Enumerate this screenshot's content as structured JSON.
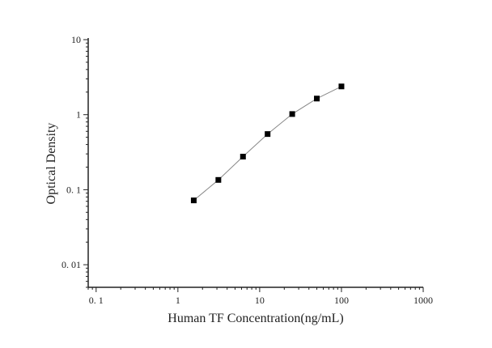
{
  "chart_data": {
    "type": "line",
    "title": "",
    "xlabel": "Human TF Concentration(ng/mL)",
    "ylabel": "Optical Density",
    "x_scale": "log",
    "y_scale": "log",
    "xlim": [
      0.08,
      1000
    ],
    "ylim": [
      0.005,
      10
    ],
    "x_ticks": [
      0.1,
      1,
      10,
      100,
      1000
    ],
    "x_tick_labels": [
      "0. 1",
      "1",
      "10",
      "100",
      "1000"
    ],
    "y_ticks": [
      0.01,
      0.1,
      1,
      10
    ],
    "y_tick_labels": [
      "0. 01",
      "0. 1",
      "1",
      "10"
    ],
    "grid": false,
    "series": [
      {
        "marker": "square",
        "color": "#000000",
        "line_color": "#888888",
        "x": [
          1.5625,
          3.125,
          6.25,
          12.5,
          25,
          50,
          100
        ],
        "y": [
          0.072,
          0.135,
          0.276,
          0.552,
          1.02,
          1.64,
          2.38
        ]
      }
    ]
  }
}
